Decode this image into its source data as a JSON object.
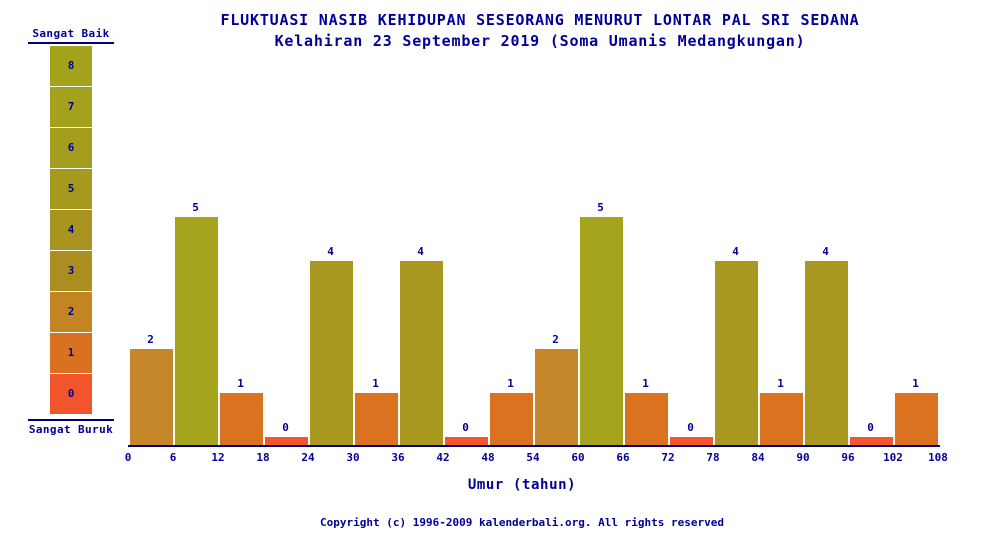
{
  "page": {
    "background": "#FFFFFF",
    "text_color": "#000099",
    "line_color": "#000080"
  },
  "title": {
    "line1": "FLUKTUASI NASIB KEHIDUPAN SESEORANG MENURUT LONTAR PAL SRI SEDANA",
    "line2": "Kelahiran 23 September 2019 (Soma Umanis Medangkungan)"
  },
  "scale": {
    "top_label": "Sangat Baik",
    "bottom_label": "Sangat Buruk",
    "blocks": [
      {
        "label": "8",
        "color": "#A4A41C"
      },
      {
        "label": "7",
        "color": "#A4A11D"
      },
      {
        "label": "6",
        "color": "#A59D1E"
      },
      {
        "label": "5",
        "color": "#A69A1E"
      },
      {
        "label": "4",
        "color": "#A8941F"
      },
      {
        "label": "3",
        "color": "#AC8D20"
      },
      {
        "label": "2",
        "color": "#C28522"
      },
      {
        "label": "1",
        "color": "#D97120"
      },
      {
        "label": "0",
        "color": "#F2552C"
      }
    ]
  },
  "chart_data": {
    "type": "bar",
    "title": "FLUKTUASI NASIB KEHIDUPAN SESEORANG MENURUT LONTAR PAL SRI SEDANA",
    "subtitle": "Kelahiran 23 September 2019 (Soma Umanis Medangkungan)",
    "xlabel": "Umur (tahun)",
    "ylabel": "",
    "ylim": [
      0,
      8
    ],
    "grid": false,
    "legend_position": "left-scale",
    "x_ticks": [
      0,
      6,
      12,
      18,
      24,
      30,
      36,
      42,
      48,
      54,
      60,
      66,
      72,
      78,
      84,
      90,
      96,
      102,
      108
    ],
    "categories": [
      "0-6",
      "6-12",
      "12-18",
      "18-24",
      "24-30",
      "30-36",
      "36-42",
      "42-48",
      "48-54",
      "54-60",
      "60-66",
      "66-72",
      "72-78",
      "78-84",
      "84-90",
      "90-96",
      "96-102",
      "102-108"
    ],
    "values": [
      2,
      5,
      1,
      0,
      4,
      1,
      4,
      0,
      1,
      2,
      5,
      1,
      0,
      4,
      1,
      4,
      0,
      1
    ],
    "value_colors": {
      "0": "#F3562B",
      "1": "#DB7220",
      "2": "#C6872A",
      "3": "#AC8D20",
      "4": "#A89820",
      "5": "#A6A31D"
    }
  },
  "footer": {
    "copyright": "Copyright (c) 1996-2009 kalenderbali.org. All rights reserved"
  }
}
